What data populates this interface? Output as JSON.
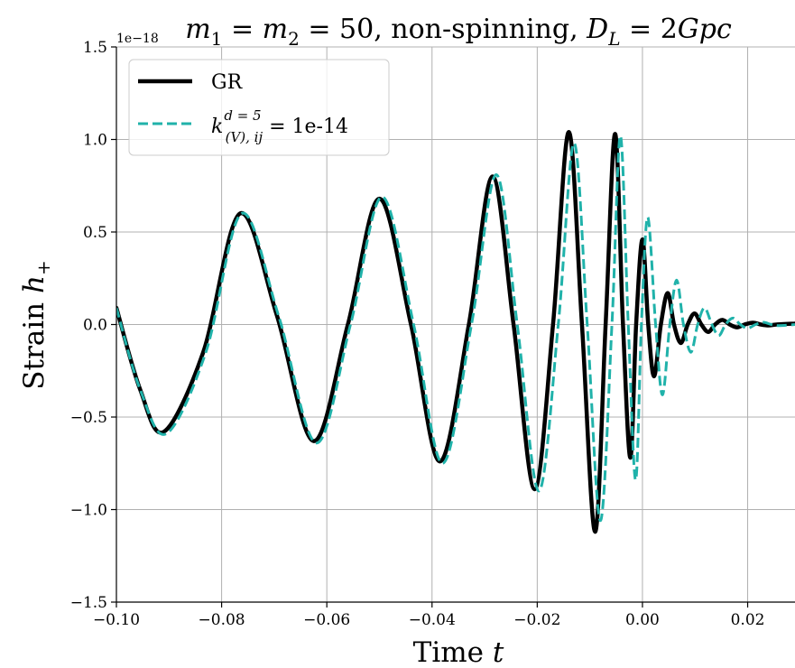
{
  "chart_data": {
    "type": "line",
    "title": "m_1 = m_2 = 50, non-spinning, D_L = 2Gpc",
    "title_parts": {
      "m1": "m",
      "m1_sub": "1",
      "eq1": " = ",
      "m2": "m",
      "m2_sub": "2",
      "eq2": " = 50, non-spinning, ",
      "DL": "D",
      "DL_sub": "L",
      "eq3": " = 2",
      "Gpc": "Gpc"
    },
    "offset_text": "1e−18",
    "xlabel": {
      "word": "Time",
      "var": "t"
    },
    "ylabel": {
      "word": "Strain",
      "var": "h",
      "sub": "+"
    },
    "xlim": [
      -0.1,
      0.029
    ],
    "ylim": [
      -1.5,
      1.5
    ],
    "y_scale_factor": "1e-18",
    "grid": true,
    "legend_placement": "top-left",
    "xticks": [
      -0.1,
      -0.08,
      -0.06,
      -0.04,
      -0.02,
      0.0,
      0.02
    ],
    "xtick_labels": [
      "−0.10",
      "−0.08",
      "−0.06",
      "−0.04",
      "−0.02",
      "0.00",
      "0.02"
    ],
    "yticks": [
      -1.5,
      -1.0,
      -0.5,
      0.0,
      0.5,
      1.0,
      1.5
    ],
    "ytick_labels": [
      "−1.5",
      "−1.0",
      "−0.5",
      "0.0",
      "0.5",
      "1.0",
      "1.5"
    ],
    "series": [
      {
        "name": "GR",
        "style": "solid",
        "color": "#000000",
        "x": [
          -0.1,
          -0.0955,
          -0.091,
          -0.0835,
          -0.0765,
          -0.0695,
          -0.0625,
          -0.056,
          -0.05,
          -0.044,
          -0.0385,
          -0.033,
          -0.0285,
          -0.0245,
          -0.0205,
          -0.017,
          -0.014,
          -0.0115,
          -0.009,
          -0.007,
          -0.0052,
          -0.0037,
          -0.0023,
          -0.0012,
          0.0,
          0.0011,
          0.0022,
          0.0035,
          0.0048,
          0.006,
          0.0073,
          0.0086,
          0.0099,
          0.0112,
          0.0125,
          0.0138,
          0.0152,
          0.0166,
          0.018,
          0.0194,
          0.021,
          0.0225,
          0.024,
          0.0255,
          0.029
        ],
        "y": [
          0.09,
          -0.35,
          -0.58,
          -0.15,
          0.6,
          0.05,
          -0.63,
          0.0,
          0.68,
          0.0,
          -0.74,
          0.0,
          0.8,
          0.0,
          -0.89,
          0.0,
          1.04,
          0.0,
          -1.12,
          0.0,
          1.03,
          0.0,
          -0.72,
          0.0,
          0.46,
          0.0,
          -0.28,
          0.0,
          0.17,
          0.0,
          -0.1,
          0.0,
          0.06,
          0.0,
          -0.04,
          0.0,
          0.025,
          0.0,
          -0.015,
          0.0,
          0.01,
          0.0,
          -0.005,
          0.0,
          0.005
        ]
      },
      {
        "name": "k^{d=5}_{(V),ij} = 1e-14",
        "style": "dashed",
        "color": "#20b2aa",
        "x": [
          -0.1,
          -0.0955,
          -0.0905,
          -0.083,
          -0.0762,
          -0.0692,
          -0.062,
          -0.0555,
          -0.0495,
          -0.0435,
          -0.038,
          -0.0325,
          -0.0278,
          -0.0238,
          -0.0197,
          -0.016,
          -0.013,
          -0.0105,
          -0.008,
          -0.0058,
          -0.0042,
          -0.0027,
          -0.0013,
          -0.0002,
          0.001,
          0.0025,
          0.0038,
          0.0052,
          0.0065,
          0.0078,
          0.0092,
          0.0105,
          0.0118,
          0.0132,
          0.0145,
          0.0158,
          0.0172,
          0.0186,
          0.02,
          0.0215,
          0.023,
          0.0245,
          0.026,
          0.029
        ],
        "y": [
          0.09,
          -0.35,
          -0.59,
          -0.15,
          0.6,
          0.05,
          -0.64,
          0.0,
          0.69,
          0.0,
          -0.75,
          0.0,
          0.81,
          0.0,
          -0.9,
          0.0,
          0.98,
          0.0,
          -1.06,
          0.0,
          1.02,
          0.0,
          -0.84,
          0.0,
          0.58,
          0.0,
          -0.38,
          0.0,
          0.24,
          0.0,
          -0.15,
          0.0,
          0.09,
          0.0,
          -0.06,
          0.0,
          0.035,
          0.0,
          -0.02,
          0.0,
          0.012,
          0.0,
          -0.006,
          0.0
        ]
      }
    ],
    "legend": {
      "entries": [
        {
          "label": "GR"
        },
        {
          "k": "k",
          "sup": "d = 5",
          "sub": "(V), ij",
          "rest": " = 1e-14"
        }
      ]
    }
  }
}
